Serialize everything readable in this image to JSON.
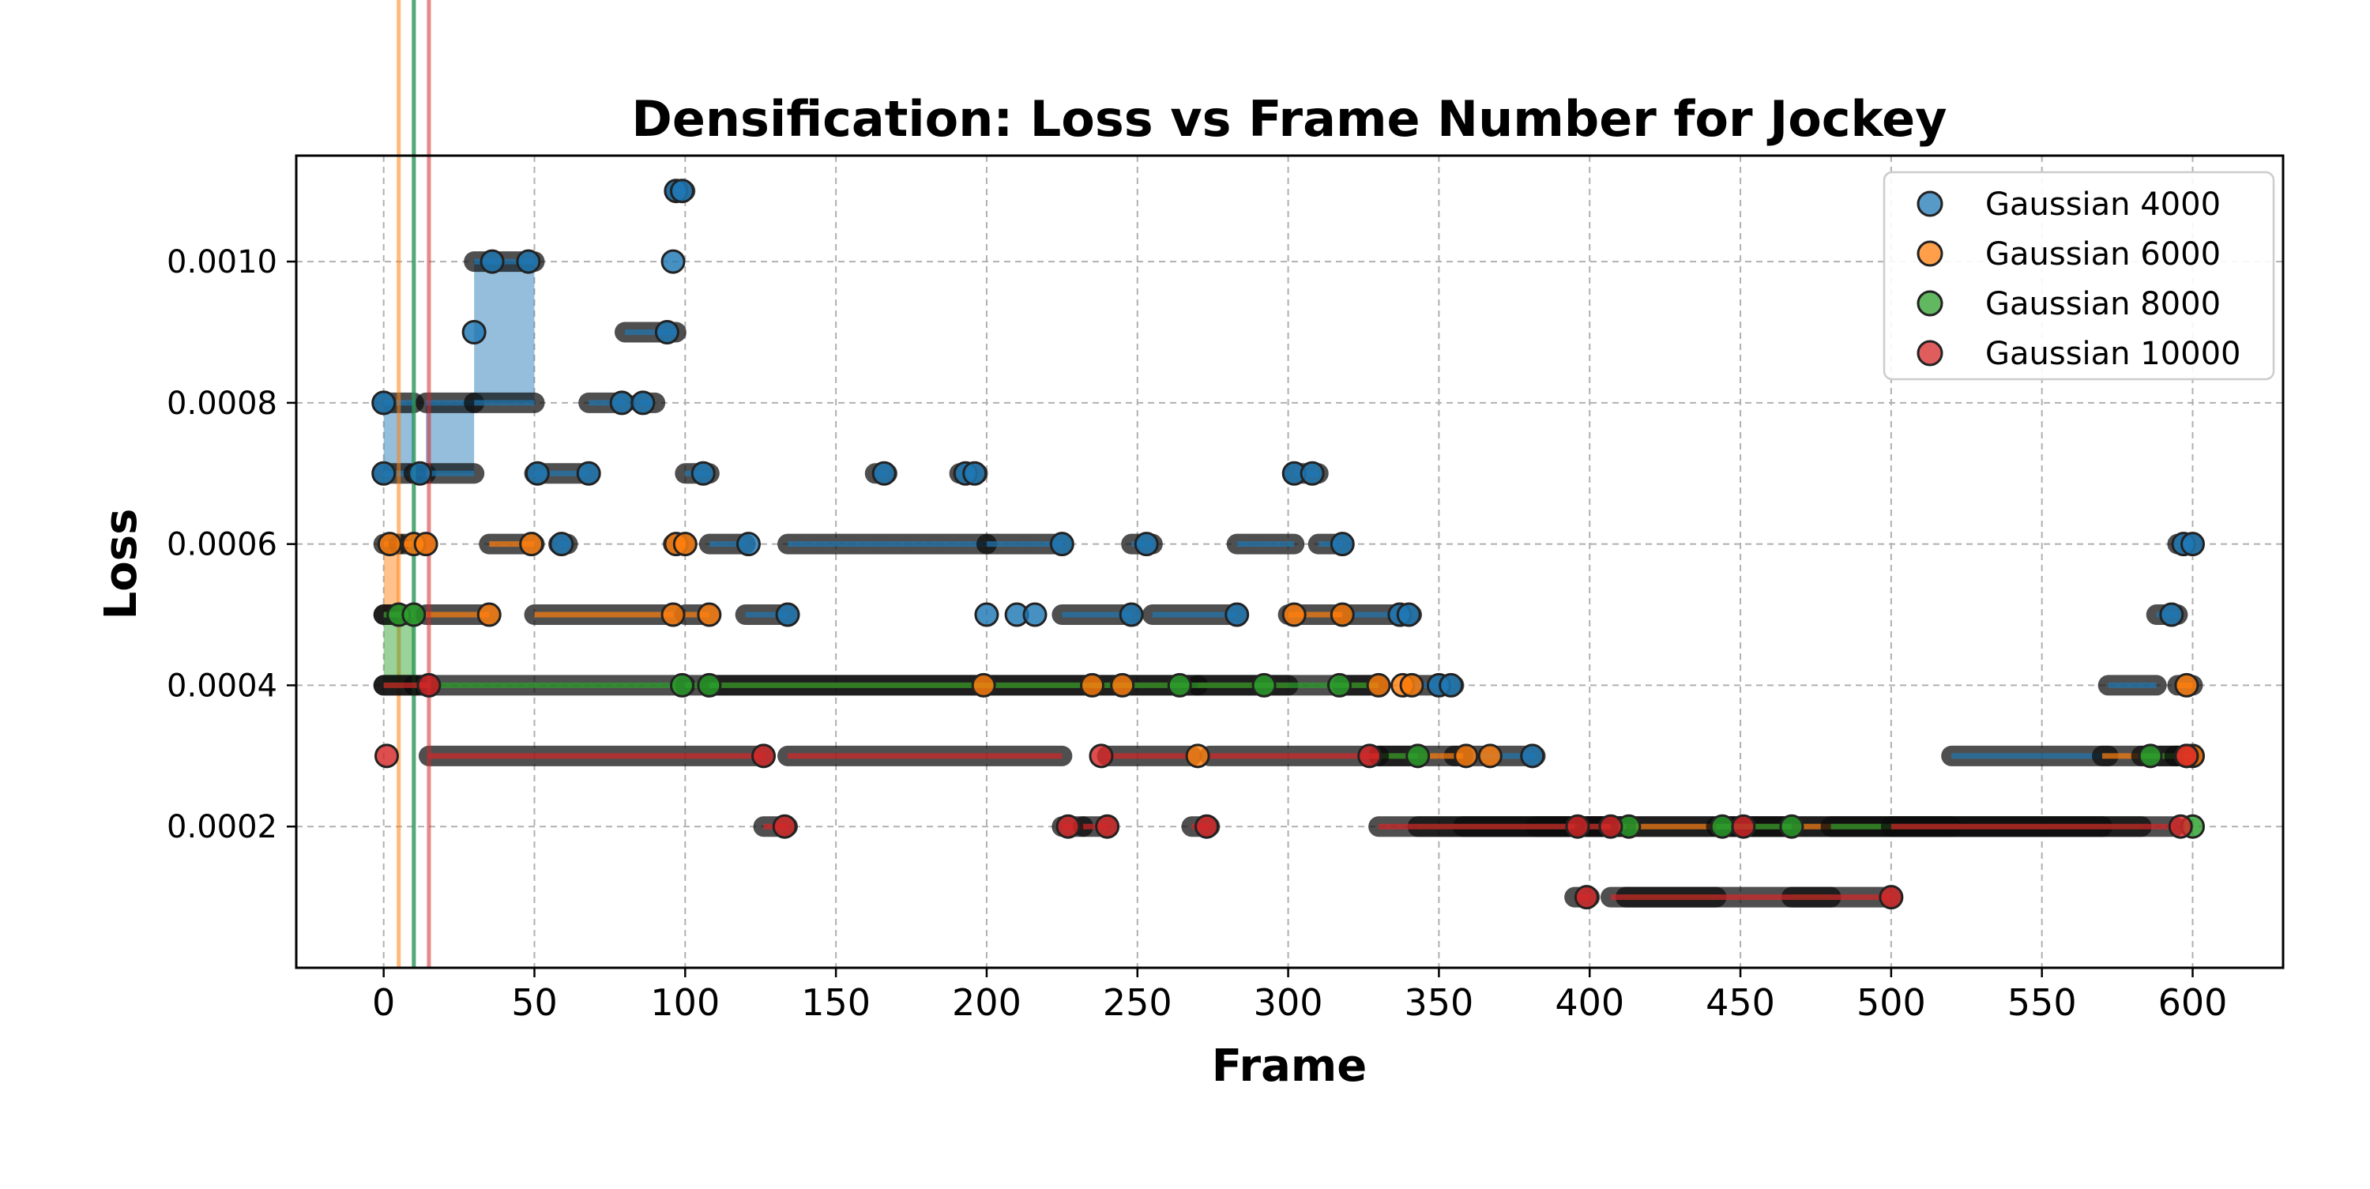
{
  "chart_data": {
    "type": "line",
    "title": "Densification: Loss vs Frame Number for Jockey",
    "xlabel": "Frame",
    "ylabel": "Loss",
    "xlim": [
      -29,
      630
    ],
    "ylim": [
      0.0,
      0.00115
    ],
    "xticks": [
      0,
      50,
      100,
      150,
      200,
      250,
      300,
      350,
      400,
      450,
      500,
      550,
      600
    ],
    "xtick_labels": [
      "0",
      "50",
      "100",
      "150",
      "200",
      "250",
      "300",
      "350",
      "400",
      "450",
      "500",
      "550",
      "600"
    ],
    "yticks": [
      0.0002,
      0.0004,
      0.0006,
      0.0008,
      0.001
    ],
    "ytick_labels": [
      "0.0002",
      "0.0004",
      "0.0006",
      "0.0008",
      "0.0010"
    ],
    "grid": true,
    "legend_position": "top-right",
    "series": [
      {
        "name": "Gaussian 4000",
        "color": "#1f77b4",
        "segments": [
          [
            0,
            10,
            0.0007,
            0.0008
          ],
          [
            10,
            14,
            0.0007,
            null
          ],
          [
            14,
            30,
            0.0007,
            0.0008
          ],
          [
            30,
            50,
            0.0008,
            0.001
          ],
          [
            50,
            68,
            0.0007,
            null
          ],
          [
            58,
            61,
            0.0006,
            null
          ],
          [
            68,
            80,
            0.0008,
            null
          ],
          [
            80,
            97,
            0.0009,
            null
          ],
          [
            85,
            90,
            0.0008,
            null
          ],
          [
            97,
            100,
            0.0011,
            null
          ],
          [
            100,
            108,
            0.0007,
            null
          ],
          [
            108,
            120,
            0.0006,
            null
          ],
          [
            120,
            134,
            0.0005,
            null
          ],
          [
            134,
            200,
            0.0006,
            null
          ],
          [
            163,
            167,
            0.0007,
            null
          ],
          [
            191,
            197,
            0.0007,
            null
          ],
          [
            200,
            225,
            0.0006,
            null
          ],
          [
            225,
            248,
            0.0005,
            null
          ],
          [
            248,
            255,
            0.0006,
            null
          ],
          [
            255,
            283,
            0.0005,
            null
          ],
          [
            283,
            302,
            0.0006,
            null
          ],
          [
            302,
            310,
            0.0007,
            null
          ],
          [
            310,
            318,
            0.0006,
            null
          ],
          [
            318,
            341,
            0.0005,
            null
          ],
          [
            341,
            355,
            0.0004,
            null
          ],
          [
            355,
            382,
            0.0003,
            null
          ],
          [
            382,
            520,
            0.0002,
            null
          ],
          [
            520,
            572,
            0.0003,
            null
          ],
          [
            572,
            588,
            0.0004,
            null
          ],
          [
            588,
            595,
            0.0005,
            null
          ],
          [
            595,
            600,
            0.0006,
            null
          ]
        ],
        "points": [
          [
            0,
            0.0007
          ],
          [
            0,
            0.0008
          ],
          [
            12,
            0.0007
          ],
          [
            30,
            0.0009
          ],
          [
            36,
            0.001
          ],
          [
            48,
            0.001
          ],
          [
            51,
            0.0007
          ],
          [
            59,
            0.0006
          ],
          [
            68,
            0.0007
          ],
          [
            79,
            0.0008
          ],
          [
            86,
            0.0008
          ],
          [
            94,
            0.0009
          ],
          [
            96,
            0.001
          ],
          [
            97,
            0.0011
          ],
          [
            99,
            0.0011
          ],
          [
            106,
            0.0007
          ],
          [
            121,
            0.0006
          ],
          [
            134,
            0.0005
          ],
          [
            166,
            0.0007
          ],
          [
            193,
            0.0007
          ],
          [
            196,
            0.0007
          ],
          [
            200,
            0.0005
          ],
          [
            210,
            0.0005
          ],
          [
            216,
            0.0005
          ],
          [
            225,
            0.0006
          ],
          [
            248,
            0.0005
          ],
          [
            253,
            0.0006
          ],
          [
            283,
            0.0005
          ],
          [
            302,
            0.0007
          ],
          [
            308,
            0.0007
          ],
          [
            318,
            0.0006
          ],
          [
            337,
            0.0005
          ],
          [
            340,
            0.0005
          ],
          [
            350,
            0.0004
          ],
          [
            354,
            0.0004
          ],
          [
            381,
            0.0003
          ],
          [
            597,
            0.0006
          ],
          [
            600,
            0.0006
          ],
          [
            593,
            0.0005
          ]
        ]
      },
      {
        "name": "Gaussian 6000",
        "color": "#ff7f0e",
        "segments": [
          [
            0,
            5,
            0.0005,
            0.0006
          ],
          [
            5,
            14,
            0.0006,
            null
          ],
          [
            14,
            35,
            0.0005,
            null
          ],
          [
            35,
            50,
            0.0006,
            null
          ],
          [
            50,
            96,
            0.0005,
            null
          ],
          [
            96,
            100,
            0.0006,
            null
          ],
          [
            100,
            108,
            0.0005,
            null
          ],
          [
            108,
            235,
            0.0004,
            null
          ],
          [
            235,
            270,
            0.0004,
            null
          ],
          [
            270,
            300,
            0.0004,
            null
          ],
          [
            300,
            318,
            0.0005,
            null
          ],
          [
            318,
            330,
            0.0004,
            null
          ],
          [
            330,
            358,
            0.0003,
            null
          ],
          [
            358,
            570,
            0.0002,
            null
          ],
          [
            570,
            595,
            0.0003,
            null
          ],
          [
            595,
            600,
            0.0004,
            null
          ]
        ],
        "points": [
          [
            2,
            0.0006
          ],
          [
            10,
            0.0006
          ],
          [
            14,
            0.0006
          ],
          [
            35,
            0.0005
          ],
          [
            49,
            0.0006
          ],
          [
            96,
            0.0005
          ],
          [
            97,
            0.0006
          ],
          [
            100,
            0.0006
          ],
          [
            108,
            0.0005
          ],
          [
            199,
            0.0004
          ],
          [
            235,
            0.0004
          ],
          [
            245,
            0.0004
          ],
          [
            270,
            0.0003
          ],
          [
            302,
            0.0005
          ],
          [
            318,
            0.0005
          ],
          [
            330,
            0.0004
          ],
          [
            338,
            0.0004
          ],
          [
            341,
            0.0004
          ],
          [
            359,
            0.0003
          ],
          [
            367,
            0.0003
          ],
          [
            598,
            0.0004
          ],
          [
            600,
            0.0003
          ],
          [
            598,
            0.0003
          ]
        ]
      },
      {
        "name": "Gaussian 8000",
        "color": "#2ca02c",
        "segments": [
          [
            0,
            10,
            0.0004,
            0.0005
          ],
          [
            10,
            100,
            0.0004,
            null
          ],
          [
            100,
            108,
            0.0004,
            null
          ],
          [
            108,
            330,
            0.0004,
            null
          ],
          [
            330,
            343,
            0.0003,
            null
          ],
          [
            343,
            412,
            0.0002,
            null
          ],
          [
            412,
            442,
            0.0001,
            null
          ],
          [
            442,
            467,
            0.0002,
            null
          ],
          [
            467,
            480,
            0.0001,
            null
          ],
          [
            480,
            583,
            0.0002,
            null
          ],
          [
            583,
            600,
            0.0003,
            null
          ]
        ],
        "points": [
          [
            5,
            0.0005
          ],
          [
            10,
            0.0005
          ],
          [
            99,
            0.0004
          ],
          [
            108,
            0.0004
          ],
          [
            264,
            0.0004
          ],
          [
            292,
            0.0004
          ],
          [
            317,
            0.0004
          ],
          [
            343,
            0.0003
          ],
          [
            413,
            0.0002
          ],
          [
            444,
            0.0002
          ],
          [
            467,
            0.0002
          ],
          [
            586,
            0.0003
          ],
          [
            600,
            0.0002
          ]
        ]
      },
      {
        "name": "Gaussian 10000",
        "color": "#d62728",
        "segments": [
          [
            0,
            15,
            0.0004,
            null
          ],
          [
            15,
            126,
            0.0003,
            null
          ],
          [
            126,
            134,
            0.0002,
            null
          ],
          [
            134,
            225,
            0.0003,
            null
          ],
          [
            225,
            232,
            0.0002,
            null
          ],
          [
            232,
            240,
            0.0002,
            null
          ],
          [
            240,
            268,
            0.0003,
            null
          ],
          [
            268,
            274,
            0.0002,
            null
          ],
          [
            274,
            330,
            0.0003,
            null
          ],
          [
            330,
            395,
            0.0002,
            null
          ],
          [
            395,
            400,
            0.0001,
            null
          ],
          [
            400,
            407,
            0.0002,
            null
          ],
          [
            407,
            500,
            0.0001,
            null
          ],
          [
            500,
            594,
            0.0002,
            null
          ],
          [
            594,
            600,
            0.0003,
            null
          ]
        ],
        "points": [
          [
            1,
            0.0003
          ],
          [
            15,
            0.0004
          ],
          [
            126,
            0.0003
          ],
          [
            133,
            0.0002
          ],
          [
            227,
            0.0002
          ],
          [
            240,
            0.0002
          ],
          [
            238,
            0.0003
          ],
          [
            273,
            0.0002
          ],
          [
            327,
            0.0003
          ],
          [
            396,
            0.0002
          ],
          [
            399,
            0.0001
          ],
          [
            407,
            0.0002
          ],
          [
            451,
            0.0002
          ],
          [
            500,
            0.0001
          ],
          [
            596,
            0.0002
          ],
          [
            598,
            0.0003
          ]
        ]
      }
    ]
  }
}
